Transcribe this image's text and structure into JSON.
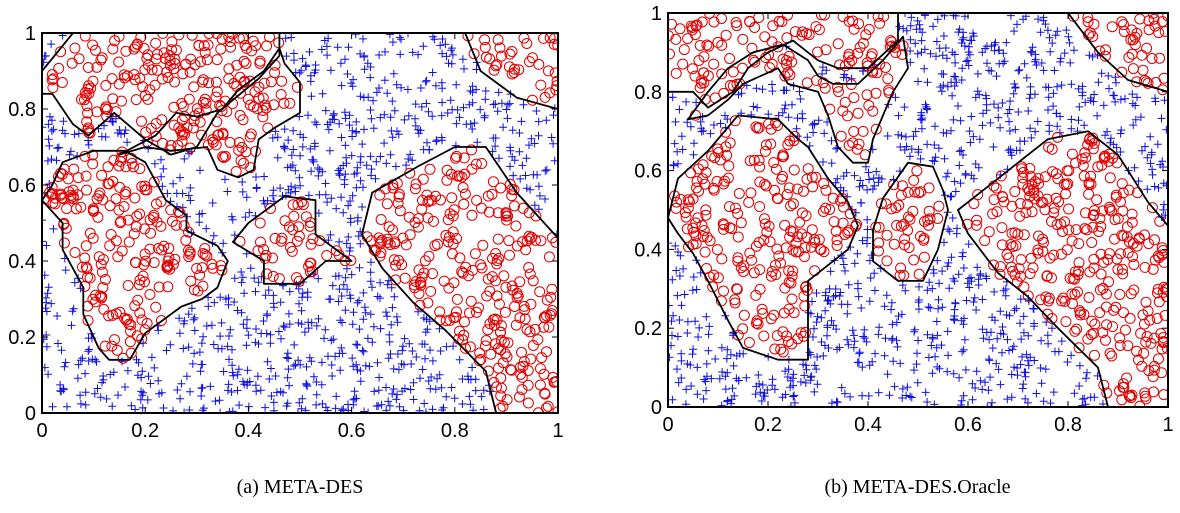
{
  "colors": {
    "class_a": "#e00000",
    "class_b": "#1010e0",
    "boundary": "#000000",
    "frame": "#000000"
  },
  "chart_data": [
    {
      "type": "scatter",
      "caption": "(a) META-DES",
      "title": "",
      "xlabel": "",
      "ylabel": "",
      "xlim": [
        0,
        1
      ],
      "ylim": [
        0,
        1
      ],
      "xticks": [
        "0",
        "0.2",
        "0.4",
        "0.6",
        "0.8",
        "1"
      ],
      "yticks": [
        "0",
        "0.2",
        "0.4",
        "0.6",
        "0.8",
        "1"
      ],
      "grid": false,
      "legend": "none",
      "series": [
        {
          "marker": "circle",
          "color": "#e00000"
        },
        {
          "marker": "plus",
          "color": "#1010e0"
        }
      ],
      "regions": [
        [
          [
            0.0,
            0.84
          ],
          [
            0.0,
            0.9
          ],
          [
            0.06,
            1.0
          ],
          [
            0.46,
            1.0
          ],
          [
            0.46,
            0.94
          ],
          [
            0.42,
            0.88
          ],
          [
            0.34,
            0.79
          ],
          [
            0.3,
            0.7
          ],
          [
            0.25,
            0.68
          ],
          [
            0.2,
            0.72
          ],
          [
            0.14,
            0.79
          ],
          [
            0.09,
            0.73
          ],
          [
            0.06,
            0.76
          ],
          [
            0.04,
            0.8
          ],
          [
            0.02,
            0.84
          ]
        ],
        [
          [
            0.15,
            0.68
          ],
          [
            0.22,
            0.73
          ],
          [
            0.26,
            0.79
          ],
          [
            0.3,
            0.78
          ],
          [
            0.35,
            0.8
          ],
          [
            0.38,
            0.85
          ],
          [
            0.43,
            0.9
          ],
          [
            0.46,
            0.96
          ],
          [
            0.47,
            0.92
          ],
          [
            0.5,
            0.87
          ],
          [
            0.5,
            0.79
          ],
          [
            0.45,
            0.75
          ],
          [
            0.42,
            0.72
          ],
          [
            0.41,
            0.64
          ],
          [
            0.38,
            0.62
          ],
          [
            0.34,
            0.64
          ],
          [
            0.32,
            0.7
          ],
          [
            0.25,
            0.69
          ],
          [
            0.2,
            0.7
          ]
        ],
        [
          [
            0.04,
            0.66
          ],
          [
            0.1,
            0.69
          ],
          [
            0.16,
            0.69
          ],
          [
            0.2,
            0.66
          ],
          [
            0.24,
            0.56
          ],
          [
            0.28,
            0.52
          ],
          [
            0.28,
            0.48
          ],
          [
            0.34,
            0.44
          ],
          [
            0.36,
            0.4
          ],
          [
            0.34,
            0.33
          ],
          [
            0.31,
            0.3
          ],
          [
            0.27,
            0.28
          ],
          [
            0.2,
            0.21
          ],
          [
            0.17,
            0.14
          ],
          [
            0.13,
            0.14
          ],
          [
            0.11,
            0.17
          ],
          [
            0.08,
            0.26
          ],
          [
            0.08,
            0.33
          ],
          [
            0.06,
            0.38
          ],
          [
            0.04,
            0.43
          ],
          [
            0.04,
            0.5
          ],
          [
            0.0,
            0.56
          ],
          [
            0.02,
            0.6
          ]
        ],
        [
          [
            0.4,
            0.5
          ],
          [
            0.47,
            0.57
          ],
          [
            0.53,
            0.56
          ],
          [
            0.53,
            0.47
          ],
          [
            0.6,
            0.4
          ],
          [
            0.55,
            0.4
          ],
          [
            0.5,
            0.34
          ],
          [
            0.43,
            0.34
          ],
          [
            0.43,
            0.4
          ],
          [
            0.37,
            0.45
          ]
        ],
        [
          [
            0.64,
            0.58
          ],
          [
            0.73,
            0.65
          ],
          [
            0.8,
            0.7
          ],
          [
            0.86,
            0.7
          ],
          [
            0.92,
            0.58
          ],
          [
            1.0,
            0.46
          ],
          [
            1.0,
            0.0
          ],
          [
            0.88,
            0.0
          ],
          [
            0.86,
            0.11
          ],
          [
            0.78,
            0.22
          ],
          [
            0.72,
            0.29
          ],
          [
            0.66,
            0.38
          ],
          [
            0.62,
            0.47
          ]
        ],
        [
          [
            0.82,
            1.0
          ],
          [
            1.0,
            1.0
          ],
          [
            1.0,
            0.8
          ],
          [
            0.92,
            0.83
          ],
          [
            0.85,
            0.9
          ]
        ]
      ]
    },
    {
      "type": "scatter",
      "caption": "(b) META-DES.Oracle",
      "title": "",
      "xlabel": "",
      "ylabel": "",
      "xlim": [
        0,
        1
      ],
      "ylim": [
        0,
        1
      ],
      "xticks": [
        "0",
        "0.2",
        "0.4",
        "0.6",
        "0.8",
        "1"
      ],
      "yticks": [
        "0",
        "0.2",
        "0.4",
        "0.6",
        "0.8",
        "1"
      ],
      "grid": false,
      "legend": "none",
      "series": [
        {
          "marker": "circle",
          "color": "#e00000"
        },
        {
          "marker": "plus",
          "color": "#1010e0"
        }
      ],
      "regions": [
        [
          [
            0.0,
            0.8
          ],
          [
            0.0,
            1.0
          ],
          [
            0.46,
            1.0
          ],
          [
            0.46,
            0.93
          ],
          [
            0.4,
            0.86
          ],
          [
            0.34,
            0.86
          ],
          [
            0.3,
            0.88
          ],
          [
            0.25,
            0.93
          ],
          [
            0.2,
            0.9
          ],
          [
            0.16,
            0.86
          ],
          [
            0.13,
            0.8
          ],
          [
            0.08,
            0.76
          ],
          [
            0.05,
            0.8
          ]
        ],
        [
          [
            0.04,
            0.73
          ],
          [
            0.08,
            0.8
          ],
          [
            0.12,
            0.86
          ],
          [
            0.17,
            0.9
          ],
          [
            0.23,
            0.92
          ],
          [
            0.28,
            0.88
          ],
          [
            0.3,
            0.84
          ],
          [
            0.33,
            0.82
          ],
          [
            0.38,
            0.82
          ],
          [
            0.43,
            0.88
          ],
          [
            0.47,
            0.94
          ],
          [
            0.48,
            0.86
          ],
          [
            0.45,
            0.8
          ],
          [
            0.43,
            0.74
          ],
          [
            0.41,
            0.68
          ],
          [
            0.4,
            0.62
          ],
          [
            0.37,
            0.62
          ],
          [
            0.34,
            0.66
          ],
          [
            0.32,
            0.74
          ],
          [
            0.3,
            0.8
          ],
          [
            0.24,
            0.82
          ],
          [
            0.22,
            0.86
          ],
          [
            0.15,
            0.82
          ],
          [
            0.12,
            0.78
          ],
          [
            0.08,
            0.74
          ]
        ],
        [
          [
            0.02,
            0.58
          ],
          [
            0.08,
            0.65
          ],
          [
            0.14,
            0.74
          ],
          [
            0.22,
            0.73
          ],
          [
            0.26,
            0.68
          ],
          [
            0.28,
            0.66
          ],
          [
            0.32,
            0.58
          ],
          [
            0.36,
            0.52
          ],
          [
            0.38,
            0.46
          ],
          [
            0.36,
            0.4
          ],
          [
            0.32,
            0.36
          ],
          [
            0.28,
            0.32
          ],
          [
            0.28,
            0.24
          ],
          [
            0.28,
            0.12
          ],
          [
            0.22,
            0.12
          ],
          [
            0.15,
            0.15
          ],
          [
            0.12,
            0.22
          ],
          [
            0.08,
            0.32
          ],
          [
            0.05,
            0.39
          ],
          [
            0.02,
            0.44
          ],
          [
            0.0,
            0.48
          ]
        ],
        [
          [
            0.43,
            0.53
          ],
          [
            0.48,
            0.62
          ],
          [
            0.53,
            0.61
          ],
          [
            0.55,
            0.55
          ],
          [
            0.56,
            0.5
          ],
          [
            0.54,
            0.4
          ],
          [
            0.51,
            0.32
          ],
          [
            0.46,
            0.32
          ],
          [
            0.41,
            0.37
          ],
          [
            0.41,
            0.45
          ]
        ],
        [
          [
            0.64,
            0.56
          ],
          [
            0.7,
            0.62
          ],
          [
            0.76,
            0.68
          ],
          [
            0.84,
            0.7
          ],
          [
            0.9,
            0.64
          ],
          [
            0.96,
            0.52
          ],
          [
            1.0,
            0.46
          ],
          [
            1.0,
            0.0
          ],
          [
            0.88,
            0.0
          ],
          [
            0.86,
            0.1
          ],
          [
            0.78,
            0.2
          ],
          [
            0.72,
            0.28
          ],
          [
            0.66,
            0.34
          ],
          [
            0.6,
            0.44
          ],
          [
            0.58,
            0.5
          ]
        ],
        [
          [
            0.8,
            1.0
          ],
          [
            1.0,
            1.0
          ],
          [
            1.0,
            0.8
          ],
          [
            0.92,
            0.83
          ],
          [
            0.86,
            0.9
          ]
        ]
      ]
    }
  ]
}
